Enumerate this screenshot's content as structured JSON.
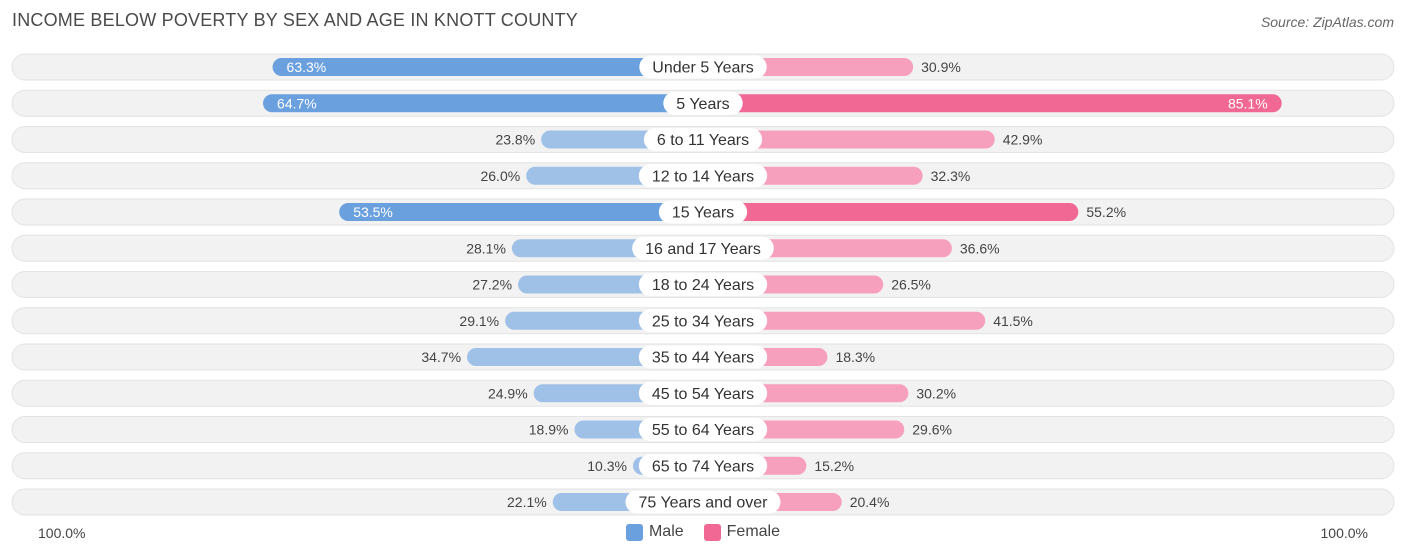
{
  "header": {
    "title": "INCOME BELOW POVERTY BY SEX AND AGE IN KNOTT COUNTY",
    "source": "Source: ZipAtlas.com"
  },
  "axis": {
    "left": "100.0%",
    "right": "100.0%"
  },
  "legend": {
    "male": "Male",
    "female": "Female"
  },
  "colors": {
    "male_strong": "#6aa0de",
    "male_light": "#9fc1e8",
    "female_strong": "#f06893",
    "female_light": "#f6a0bd",
    "row_bg": "#f2f2f2"
  },
  "chart_data": {
    "type": "bar",
    "orientation": "horizontal-diverging",
    "title": "INCOME BELOW POVERTY BY SEX AND AGE IN KNOTT COUNTY",
    "categories": [
      "Under 5 Years",
      "5 Years",
      "6 to 11 Years",
      "12 to 14 Years",
      "15 Years",
      "16 and 17 Years",
      "18 to 24 Years",
      "25 to 34 Years",
      "35 to 44 Years",
      "45 to 54 Years",
      "55 to 64 Years",
      "65 to 74 Years",
      "75 Years and over"
    ],
    "series": [
      {
        "name": "Male",
        "values": [
          63.3,
          64.7,
          23.8,
          26.0,
          53.5,
          28.1,
          27.2,
          29.1,
          34.7,
          24.9,
          18.9,
          10.3,
          22.1
        ],
        "labels": [
          "63.3%",
          "64.7%",
          "23.8%",
          "26.0%",
          "53.5%",
          "28.1%",
          "27.2%",
          "29.1%",
          "34.7%",
          "24.9%",
          "18.9%",
          "10.3%",
          "22.1%"
        ]
      },
      {
        "name": "Female",
        "values": [
          30.9,
          85.1,
          42.9,
          32.3,
          55.2,
          36.6,
          26.5,
          41.5,
          18.3,
          30.2,
          29.6,
          15.2,
          20.4
        ],
        "labels": [
          "30.9%",
          "85.1%",
          "42.9%",
          "32.3%",
          "55.2%",
          "36.6%",
          "26.5%",
          "41.5%",
          "18.3%",
          "30.2%",
          "29.6%",
          "15.2%",
          "20.4%"
        ]
      }
    ],
    "xlim": [
      -100,
      100
    ],
    "xlabel_left": "100.0%",
    "xlabel_right": "100.0%"
  }
}
